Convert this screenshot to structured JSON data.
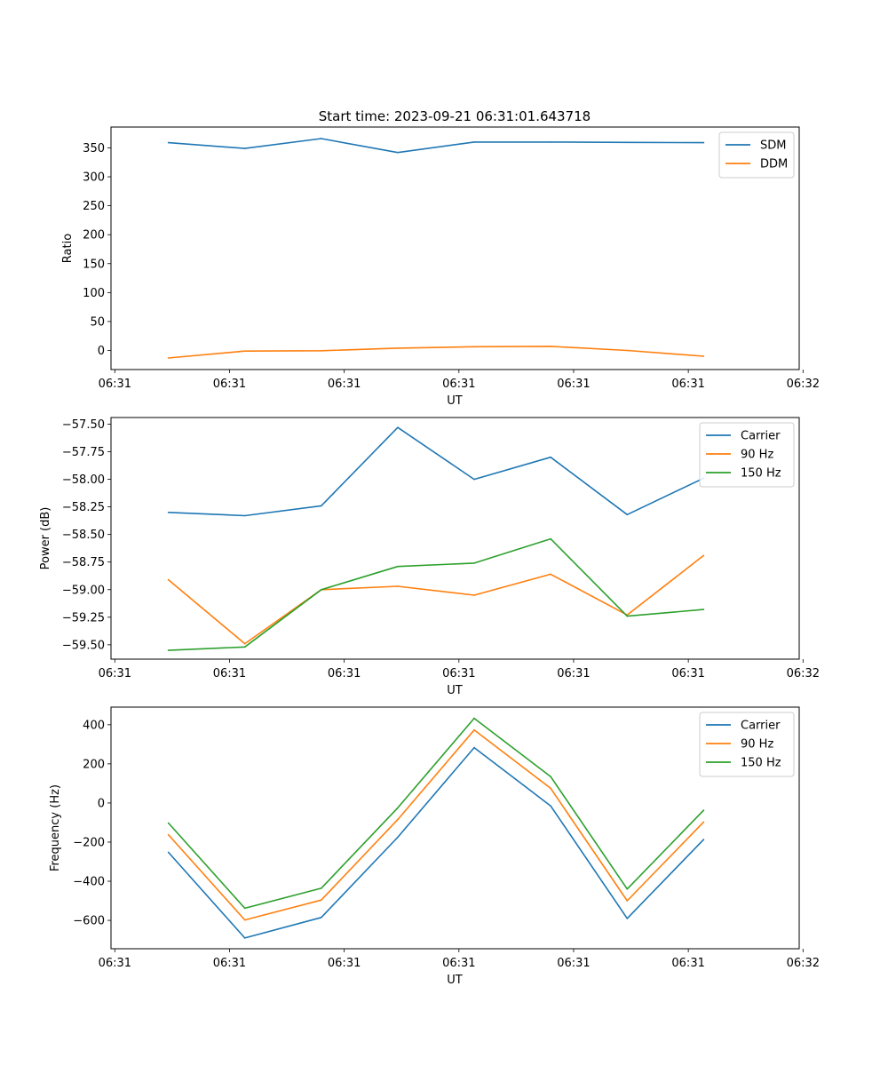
{
  "figure": {
    "title": "Start time: 2023-09-21 06:31:01.643718"
  },
  "chart_data": [
    {
      "type": "line",
      "ylabel": "Ratio",
      "xlabel": "UT",
      "x": [
        0,
        1,
        2,
        3,
        4,
        5,
        6,
        7
      ],
      "x_range": [
        -0.75,
        8.25
      ],
      "x_ticks": [
        -0.7,
        0.8,
        2.3,
        3.8,
        5.3,
        6.8,
        8.3
      ],
      "x_tick_labels": [
        "06:31",
        "06:31",
        "06:31",
        "06:31",
        "06:31",
        "06:31",
        "06:32"
      ],
      "ylim": [
        -33,
        386
      ],
      "y_ticks": [
        0,
        50,
        100,
        150,
        200,
        250,
        300,
        350
      ],
      "y_tick_labels": [
        "0",
        "50",
        "100",
        "150",
        "200",
        "250",
        "300",
        "350"
      ],
      "legend": "top-right",
      "series": [
        {
          "name": "SDM",
          "color": "#1f77b4",
          "values": [
            359,
            349,
            366,
            342,
            360,
            360,
            359.5,
            359
          ]
        },
        {
          "name": "DDM",
          "color": "#ff7f0e",
          "values": [
            -13,
            -1,
            -0.5,
            4,
            6.5,
            7,
            0,
            -10
          ]
        }
      ]
    },
    {
      "type": "line",
      "ylabel": "Power (dB)",
      "xlabel": "UT",
      "x": [
        0,
        1,
        2,
        3,
        4,
        5,
        6,
        7
      ],
      "x_range": [
        -0.75,
        8.25
      ],
      "x_ticks": [
        -0.7,
        0.8,
        2.3,
        3.8,
        5.3,
        6.8,
        8.3
      ],
      "x_tick_labels": [
        "06:31",
        "06:31",
        "06:31",
        "06:31",
        "06:31",
        "06:31",
        "06:32"
      ],
      "ylim": [
        -59.63,
        -57.44
      ],
      "y_ticks": [
        -57.5,
        -57.75,
        -58.0,
        -58.25,
        -58.5,
        -58.75,
        -59.0,
        -59.25,
        -59.5
      ],
      "y_tick_labels": [
        "−57.50",
        "−57.75",
        "−58.00",
        "−58.25",
        "−58.50",
        "−58.75",
        "−59.00",
        "−59.25",
        "−59.50"
      ],
      "legend": "top-right",
      "series": [
        {
          "name": "Carrier",
          "color": "#1f77b4",
          "values": [
            -58.3,
            -58.33,
            -58.24,
            -57.53,
            -58.0,
            -57.8,
            -58.32,
            -57.99
          ]
        },
        {
          "name": "90 Hz",
          "color": "#ff7f0e",
          "values": [
            -58.91,
            -59.49,
            -59.0,
            -58.97,
            -59.05,
            -58.86,
            -59.23,
            -58.69
          ]
        },
        {
          "name": "150 Hz",
          "color": "#2ca02c",
          "values": [
            -59.55,
            -59.52,
            -59.0,
            -58.79,
            -58.76,
            -58.54,
            -59.24,
            -59.18
          ]
        }
      ]
    },
    {
      "type": "line",
      "ylabel": "Frequency (Hz)",
      "xlabel": "UT",
      "x": [
        0,
        1,
        2,
        3,
        4,
        5,
        6,
        7
      ],
      "x_range": [
        -0.75,
        8.25
      ],
      "x_ticks": [
        -0.7,
        0.8,
        2.3,
        3.8,
        5.3,
        6.8,
        8.3
      ],
      "x_tick_labels": [
        "06:31",
        "06:31",
        "06:31",
        "06:31",
        "06:31",
        "06:31",
        "06:32"
      ],
      "ylim": [
        -745,
        490
      ],
      "y_ticks": [
        400,
        200,
        0,
        -200,
        -400,
        -600
      ],
      "y_tick_labels": [
        "400",
        "200",
        "0",
        "−200",
        "−400",
        "−600"
      ],
      "legend": "top-right",
      "series": [
        {
          "name": "Carrier",
          "color": "#1f77b4",
          "values": [
            -252,
            -690,
            -585,
            -175,
            283,
            -15,
            -590,
            -187
          ]
        },
        {
          "name": "90 Hz",
          "color": "#ff7f0e",
          "values": [
            -162,
            -598,
            -496,
            -85,
            373,
            75,
            -500,
            -97
          ]
        },
        {
          "name": "150 Hz",
          "color": "#2ca02c",
          "values": [
            -102,
            -538,
            -436,
            -25,
            433,
            135,
            -440,
            -37
          ]
        }
      ]
    }
  ]
}
